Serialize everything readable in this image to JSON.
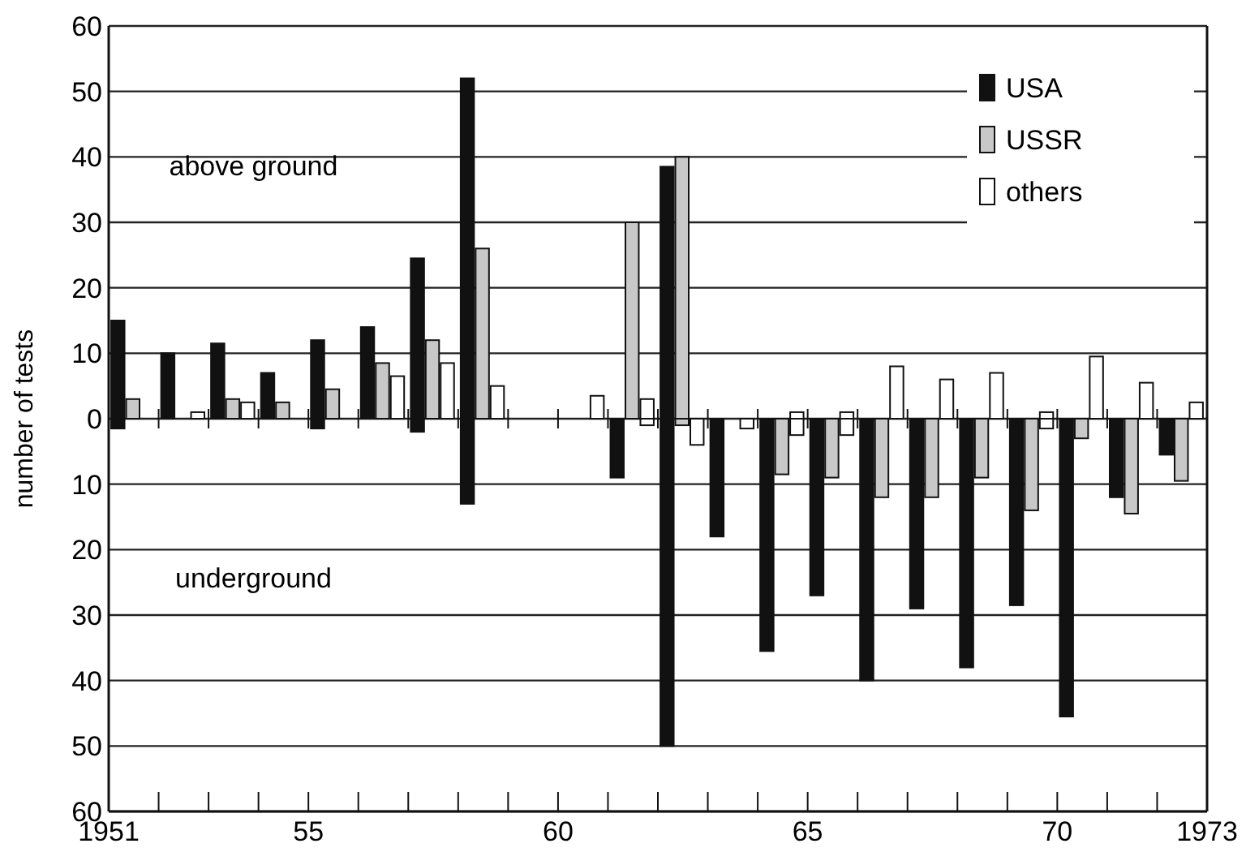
{
  "chart_data": {
    "type": "bar",
    "ylabel": "number of tests",
    "annotations": [
      "above ground",
      "underground"
    ],
    "x": [
      1951.5,
      1952.5,
      1953.5,
      1954.5,
      1955.5,
      1956.5,
      1957.5,
      1958.5,
      1959.5,
      1960.5,
      1961.5,
      1962.5,
      1963.5,
      1964.5,
      1965.5,
      1966.5,
      1967.5,
      1968.5,
      1969.5,
      1970.5,
      1971.5,
      1972.5
    ],
    "series": [
      {
        "name": "USA",
        "color": "#111111",
        "values": [
          15,
          10,
          11.5,
          7,
          12,
          14,
          24.5,
          52,
          null,
          null,
          null,
          38.5,
          null,
          null,
          null,
          null,
          null,
          null,
          null,
          null,
          null,
          null
        ]
      },
      {
        "name": "USSR",
        "color": "#c8c8c8",
        "values": [
          3,
          null,
          3,
          2.5,
          4.5,
          8.5,
          12,
          26,
          null,
          null,
          30,
          40,
          null,
          null,
          null,
          null,
          null,
          null,
          null,
          null,
          null,
          null
        ]
      },
      {
        "name": "others",
        "color": "#ffffff",
        "values": [
          null,
          1,
          2.5,
          null,
          null,
          6.5,
          8.5,
          5,
          null,
          3.5,
          3,
          null,
          null,
          1,
          1,
          8,
          6,
          7,
          1,
          9.5,
          5.5,
          2.5
        ]
      },
      {
        "color": "#111111",
        "values": [
          -1.5,
          null,
          null,
          null,
          -1.5,
          null,
          -2,
          -13,
          null,
          null,
          -9,
          -50,
          -18,
          -35.5,
          -27,
          -40,
          -29,
          -38,
          -28.5,
          -45.5,
          -12,
          -5.5
        ]
      },
      {
        "color": "#c8c8c8",
        "values": [
          null,
          null,
          null,
          null,
          null,
          null,
          null,
          null,
          null,
          null,
          null,
          -1,
          null,
          -8.5,
          -9,
          -12,
          -12,
          -9,
          -14,
          -3,
          -14.5,
          -9.5
        ]
      },
      {
        "color": "#ffffff",
        "values": [
          null,
          null,
          null,
          null,
          null,
          null,
          null,
          null,
          null,
          null,
          -1,
          -4,
          -1.5,
          -2.5,
          -2.5,
          null,
          null,
          null,
          -1.5,
          null,
          null,
          null
        ]
      }
    ],
    "xlim": [
      1951,
      1973
    ],
    "xticks": [
      {
        "value": 1951,
        "label": "1951"
      },
      {
        "value": 1952,
        "label": null
      },
      {
        "value": 1953,
        "label": null
      },
      {
        "value": 1954,
        "label": null
      },
      {
        "value": 1955,
        "label": "55"
      },
      {
        "value": 1956,
        "label": null
      },
      {
        "value": 1957,
        "label": null
      },
      {
        "value": 1958,
        "label": null
      },
      {
        "value": 1959,
        "label": null
      },
      {
        "value": 1960,
        "label": "60"
      },
      {
        "value": 1961,
        "label": null
      },
      {
        "value": 1962,
        "label": null
      },
      {
        "value": 1963,
        "label": null
      },
      {
        "value": 1964,
        "label": null
      },
      {
        "value": 1965,
        "label": "65"
      },
      {
        "value": 1966,
        "label": null
      },
      {
        "value": 1967,
        "label": null
      },
      {
        "value": 1968,
        "label": null
      },
      {
        "value": 1969,
        "label": null
      },
      {
        "value": 1970,
        "label": "70"
      },
      {
        "value": 1971,
        "label": null
      },
      {
        "value": 1972,
        "label": null
      },
      {
        "value": 1973,
        "label": "1973"
      }
    ],
    "ylim": [
      -60,
      60
    ],
    "yticks": [
      {
        "value": -60,
        "label": "60"
      },
      {
        "value": -50,
        "label": "50"
      },
      {
        "value": -40,
        "label": "40"
      },
      {
        "value": -30,
        "label": "30"
      },
      {
        "value": -20,
        "label": "20"
      },
      {
        "value": -10,
        "label": "10"
      },
      0,
      10,
      20,
      30,
      40,
      50,
      60
    ],
    "grid": "y",
    "legend": "top right"
  }
}
